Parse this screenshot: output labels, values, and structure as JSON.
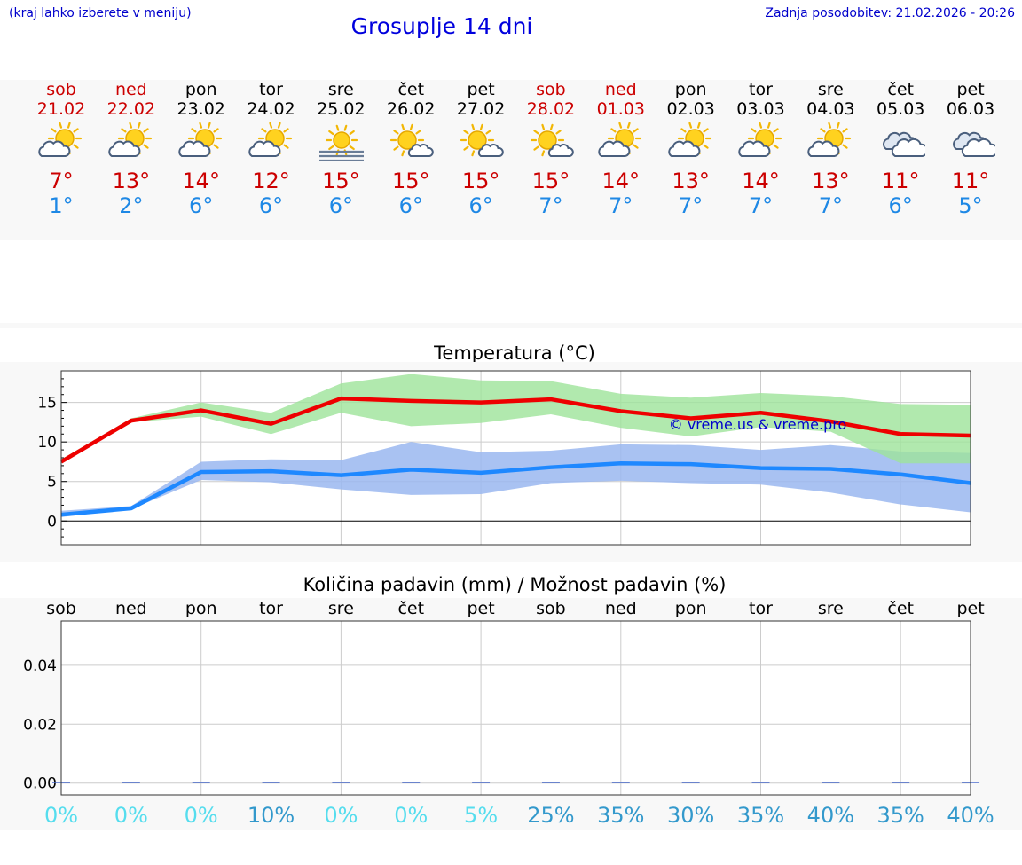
{
  "header": {
    "hint": "(kraj lahko izberete v meniju)",
    "title": "Grosuplje 14 dni",
    "updated": "Zadnja posodobitev: 21.02.2026 - 20:26"
  },
  "days": [
    {
      "name": "sob",
      "date": "21.02",
      "weekend": true,
      "icon": "sun-cloud-icon",
      "tmax": "7°",
      "tmin": "1°"
    },
    {
      "name": "ned",
      "date": "22.02",
      "weekend": true,
      "icon": "sun-cloud-icon",
      "tmax": "13°",
      "tmin": "2°"
    },
    {
      "name": "pon",
      "date": "23.02",
      "weekend": false,
      "icon": "sun-cloud-icon",
      "tmax": "14°",
      "tmin": "6°"
    },
    {
      "name": "tor",
      "date": "24.02",
      "weekend": false,
      "icon": "sun-cloud-icon",
      "tmax": "12°",
      "tmin": "6°"
    },
    {
      "name": "sre",
      "date": "25.02",
      "weekend": false,
      "icon": "sun-fog-icon",
      "tmax": "15°",
      "tmin": "6°"
    },
    {
      "name": "čet",
      "date": "26.02",
      "weekend": false,
      "icon": "sun-small-cloud-icon",
      "tmax": "15°",
      "tmin": "6°"
    },
    {
      "name": "pet",
      "date": "27.02",
      "weekend": false,
      "icon": "sun-small-cloud-icon",
      "tmax": "15°",
      "tmin": "6°"
    },
    {
      "name": "sob",
      "date": "28.02",
      "weekend": true,
      "icon": "sun-small-cloud-icon",
      "tmax": "15°",
      "tmin": "7°"
    },
    {
      "name": "ned",
      "date": "01.03",
      "weekend": true,
      "icon": "sun-cloud-icon",
      "tmax": "14°",
      "tmin": "7°"
    },
    {
      "name": "pon",
      "date": "02.03",
      "weekend": false,
      "icon": "sun-cloud-icon",
      "tmax": "13°",
      "tmin": "7°"
    },
    {
      "name": "tor",
      "date": "03.03",
      "weekend": false,
      "icon": "sun-cloud-icon",
      "tmax": "14°",
      "tmin": "7°"
    },
    {
      "name": "sre",
      "date": "04.03",
      "weekend": false,
      "icon": "sun-cloud-icon",
      "tmax": "13°",
      "tmin": "7°"
    },
    {
      "name": "čet",
      "date": "05.03",
      "weekend": false,
      "icon": "overcast-icon",
      "tmax": "11°",
      "tmin": "6°"
    },
    {
      "name": "pet",
      "date": "06.03",
      "weekend": false,
      "icon": "overcast-icon",
      "tmax": "11°",
      "tmin": "5°"
    }
  ],
  "colors": {
    "max_line": "#ee0000",
    "max_band": "#9de39a",
    "min_line": "#1e88ff",
    "min_band": "#9ab7f0",
    "overlap_band": "#66bb88",
    "grid": "#cccccc",
    "watermark": "#0000cc",
    "precip_low": "#55ddee",
    "precip_high": "#3399cc"
  },
  "chart_data": [
    {
      "type": "line",
      "title": "Temperatura (°C)",
      "watermark": "© vreme.us & vreme.pro",
      "xlabel": "",
      "ylabel": "",
      "ylim": [
        -3,
        19
      ],
      "yticks": [
        0,
        5,
        10,
        15
      ],
      "x": [
        0,
        1,
        2,
        3,
        4,
        5,
        6,
        7,
        8,
        9,
        10,
        11,
        12,
        13
      ],
      "series": [
        {
          "name": "max",
          "values": [
            7.5,
            12.7,
            14.0,
            12.3,
            15.5,
            15.2,
            15.0,
            15.4,
            13.9,
            13.0,
            13.7,
            12.6,
            11.0,
            10.8
          ],
          "band_low": [
            7.3,
            12.5,
            13.2,
            11.0,
            13.7,
            12.0,
            12.4,
            13.5,
            11.8,
            10.7,
            11.9,
            11.3,
            7.3,
            7.3
          ],
          "band_high": [
            7.8,
            13.0,
            15.0,
            13.7,
            17.4,
            18.6,
            17.8,
            17.7,
            16.1,
            15.6,
            16.2,
            15.8,
            14.8,
            14.7
          ]
        },
        {
          "name": "min",
          "values": [
            0.8,
            1.6,
            6.2,
            6.3,
            5.8,
            6.5,
            6.1,
            6.8,
            7.3,
            7.2,
            6.7,
            6.6,
            5.9,
            4.8
          ],
          "band_low": [
            0.5,
            1.5,
            5.2,
            4.9,
            4.0,
            3.3,
            3.4,
            4.8,
            5.1,
            4.8,
            4.6,
            3.6,
            2.1,
            1.1
          ],
          "band_high": [
            1.3,
            1.9,
            7.5,
            7.8,
            7.7,
            10.0,
            8.7,
            8.9,
            9.7,
            9.6,
            9.0,
            9.6,
            8.8,
            8.6
          ]
        }
      ]
    },
    {
      "type": "bar",
      "title": "Količina padavin (mm) / Možnost padavin (%)",
      "categories": [
        "sob",
        "ned",
        "pon",
        "tor",
        "sre",
        "čet",
        "pet",
        "sob",
        "ned",
        "pon",
        "tor",
        "sre",
        "čet",
        "pet"
      ],
      "values": [
        0,
        0,
        0,
        0,
        0,
        0,
        0,
        0,
        0,
        0,
        0,
        0,
        0,
        0
      ],
      "probability": [
        "0%",
        "0%",
        "0%",
        "10%",
        "0%",
        "0%",
        "5%",
        "25%",
        "35%",
        "30%",
        "35%",
        "40%",
        "35%",
        "40%"
      ],
      "ylim": [
        -0.004,
        0.055
      ],
      "yticks": [
        "0.00",
        "0.02",
        "0.04"
      ],
      "ytick_values": [
        0,
        0.02,
        0.04
      ]
    }
  ]
}
